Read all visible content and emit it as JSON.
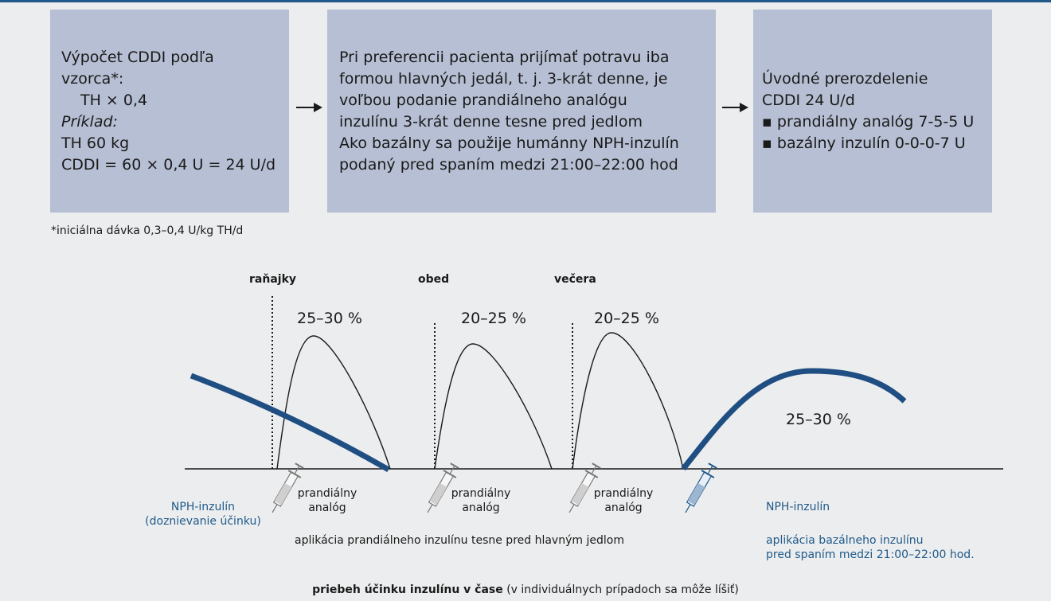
{
  "box1": {
    "line1": "Výpočet CDDI podľa",
    "line2": "vzorca*:",
    "formula": "TH × 0,4",
    "example_label": "Príklad:",
    "example_weight": "TH 60 kg",
    "example_result": "CDDI = 60 × 0,4 U = 24 U/d"
  },
  "box2": {
    "lines": [
      "Pri preferencii pacienta prijímať potravu iba",
      "formou hlavných jedál, t. j. 3-krát denne, je",
      "voľbou podanie prandiálneho analógu",
      "inzulínu 3-krát denne tesne pred jedlom",
      "Ako bazálny sa použije humánny NPH-inzulín",
      "podaný pred spaním medzi 21:00–22:00 hod"
    ]
  },
  "box3": {
    "line1": "Úvodné prerozdelenie",
    "line2": "CDDI 24 U/d",
    "bullet1": "▪ prandiálny analóg 7-5-5 U",
    "bullet2": "▪ bazálny inzulín 0-0-0-7 U"
  },
  "footnote": "*iniciálna dávka 0,3–0,4 U/kg TH/d",
  "meals": {
    "breakfast": "raňajky",
    "lunch": "obed",
    "dinner": "večera"
  },
  "percentages": {
    "breakfast": "25–30 %",
    "lunch": "20–25 %",
    "dinner": "20–25 %",
    "basal": "25–30 %"
  },
  "labels": {
    "nph_left_1": "NPH-inzulín",
    "nph_left_2": "(doznievanie účinku)",
    "prandial_1": "prandiálny",
    "prandial_2": "analóg",
    "nph_right": "NPH-inzulín",
    "prandial_application": "aplikácia prandiálneho inzulínu tesne pred hlavným jedlom",
    "basal_application_1": "aplikácia bazálneho inzulínu",
    "basal_application_2": "pred spaním medzi 21:00–22:00 hod."
  },
  "footer": {
    "bold": "priebeh účinku inzulínu v čase",
    "normal": " (v individuálnych prípadoch sa môže líšiť)"
  },
  "colors": {
    "accent": "#1f5a8a",
    "box_fill": "#b6bfd3",
    "background": "#ecedee"
  }
}
